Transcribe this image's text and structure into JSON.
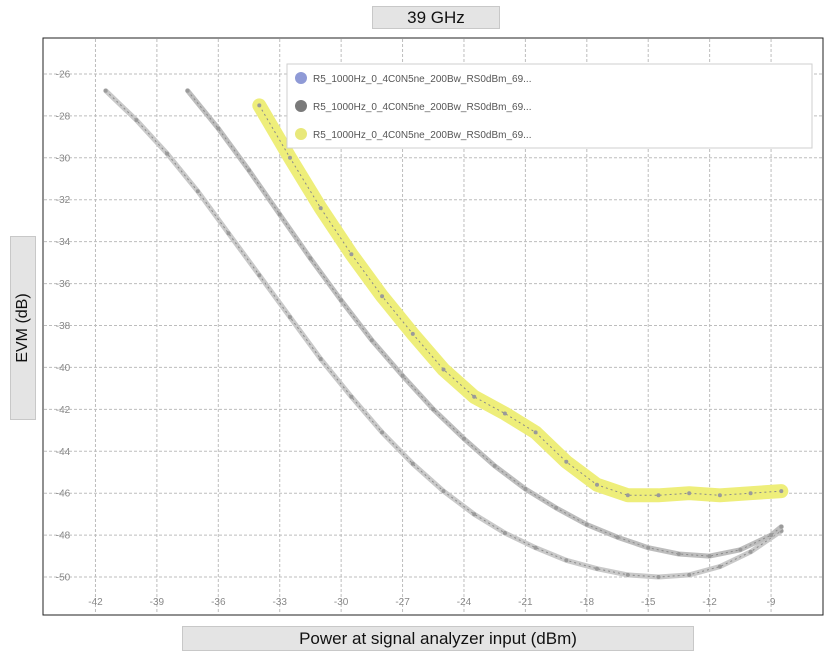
{
  "chart_data": {
    "type": "line",
    "title": "39 GHz",
    "xlabel": "Power at signal analyzer input (dBm)",
    "ylabel": "EVM (dB)",
    "xlim": [
      -43,
      -7
    ],
    "ylim": [
      -51,
      -25
    ],
    "xticks": [
      -42,
      -39,
      -36,
      -33,
      -30,
      -27,
      -24,
      -21,
      -18,
      -15,
      -12,
      -9
    ],
    "yticks": [
      -26,
      -28,
      -30,
      -32,
      -34,
      -36,
      -38,
      -40,
      -42,
      -44,
      -46,
      -48,
      -50
    ],
    "grid": true,
    "legend_position": "top-right",
    "series": [
      {
        "name": "R5_1000Hz_0_4C0N5ne_200Bw_RS0dBm_69...",
        "color": "#c9c9c9",
        "x": [
          -41.5,
          -40,
          -38.5,
          -37,
          -35.5,
          -34,
          -32.5,
          -31,
          -29.5,
          -28,
          -26.5,
          -25,
          -23.5,
          -22,
          -20.5,
          -19,
          -17.5,
          -16,
          -14.5,
          -13,
          -11.5,
          -10,
          -8.5
        ],
        "y": [
          -26.8,
          -28.2,
          -29.8,
          -31.6,
          -33.6,
          -35.6,
          -37.6,
          -39.6,
          -41.4,
          -43.1,
          -44.6,
          -45.9,
          -47.0,
          -47.9,
          -48.6,
          -49.2,
          -49.6,
          -49.9,
          -50.0,
          -49.9,
          -49.5,
          -48.8,
          -47.8
        ]
      },
      {
        "name": "R5_1000Hz_0_4C0N5ne_200Bw_RS0dBm_69...",
        "color": "#bdbdbd",
        "x": [
          -37.5,
          -36,
          -34.5,
          -33,
          -31.5,
          -30,
          -28.5,
          -27,
          -25.5,
          -24,
          -22.5,
          -21,
          -19.5,
          -18,
          -16.5,
          -15,
          -13.5,
          -12,
          -10.5,
          -9,
          -8.5
        ],
        "y": [
          -26.8,
          -28.6,
          -30.6,
          -32.7,
          -34.8,
          -36.8,
          -38.7,
          -40.4,
          -42.0,
          -43.4,
          -44.7,
          -45.8,
          -46.7,
          -47.5,
          -48.1,
          -48.6,
          -48.9,
          -49.0,
          -48.7,
          -48.0,
          -47.6
        ]
      },
      {
        "name": "R5_1000Hz_0_4C0N5ne_200Bw_RS0dBm_69...",
        "color": "#eeee7a",
        "x": [
          -34,
          -32.5,
          -31,
          -29.5,
          -28,
          -26.5,
          -25,
          -23.5,
          -22,
          -20.5,
          -19,
          -17.5,
          -16,
          -14.5,
          -13,
          -11.5,
          -10,
          -8.5
        ],
        "y": [
          -27.5,
          -30.0,
          -32.4,
          -34.6,
          -36.6,
          -38.4,
          -40.1,
          -41.4,
          -42.2,
          -43.1,
          -44.5,
          -45.6,
          -46.1,
          -46.1,
          -46.0,
          -46.1,
          -46.0,
          -45.9
        ]
      }
    ]
  }
}
